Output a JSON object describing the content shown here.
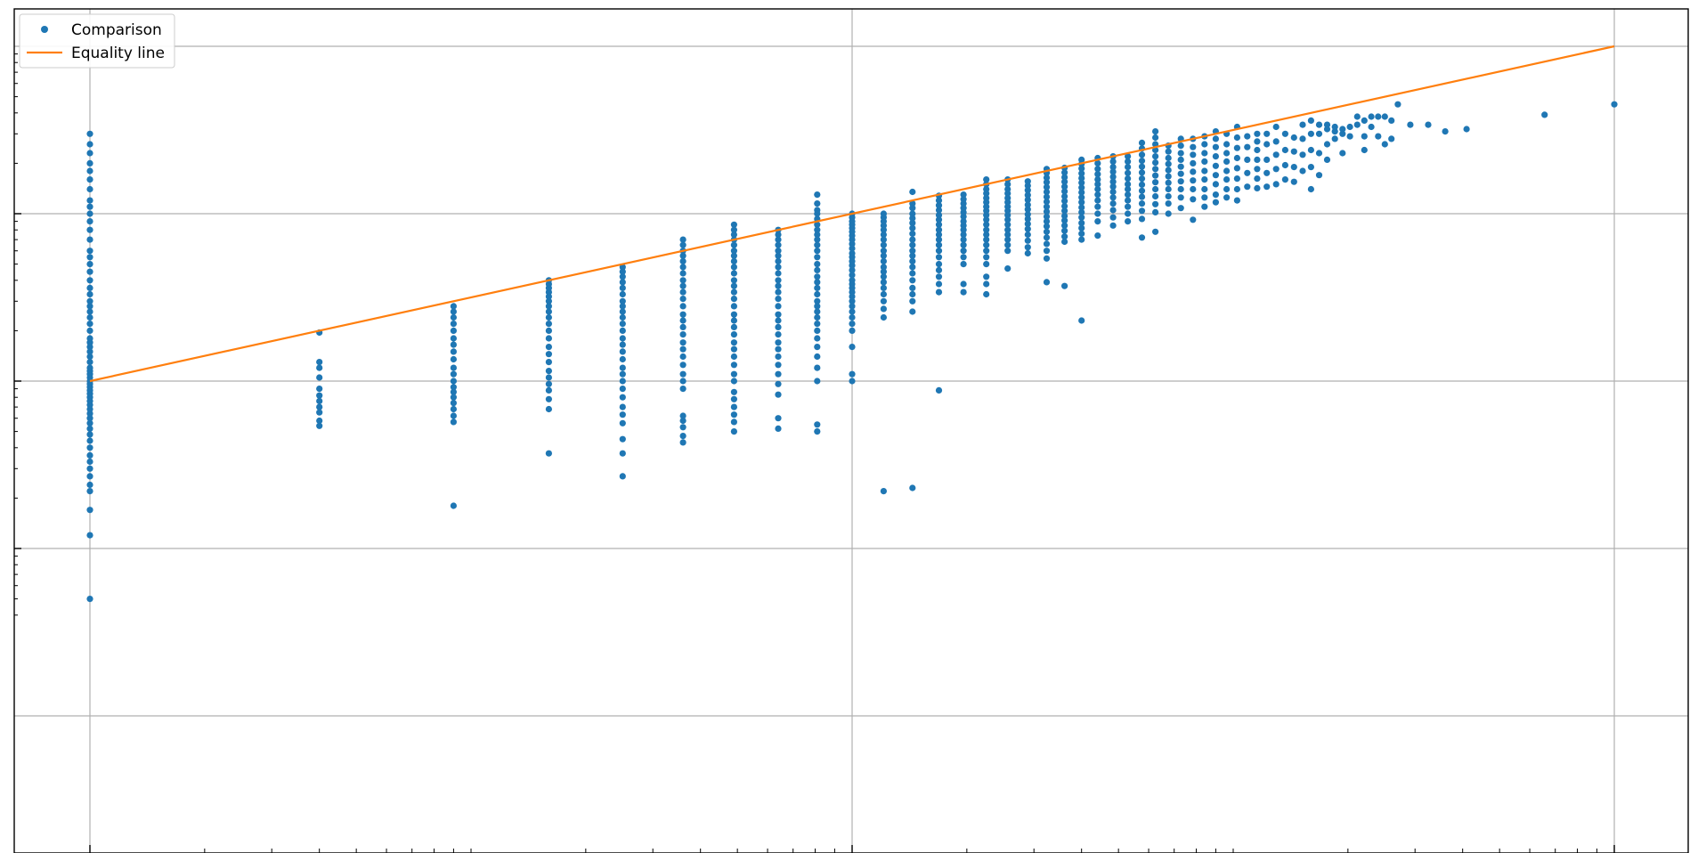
{
  "chart_data": {
    "type": "scatter",
    "title": "",
    "xlabel": "",
    "ylabel": "",
    "x_scale": "log",
    "y_scale": "log",
    "xlim": [
      0.9,
      22000
    ],
    "ylim": [
      0.037,
      90
    ],
    "grid": true,
    "legend_position": "top-left",
    "legend": [
      "Comparison",
      "Equality line"
    ],
    "colors": {
      "points": "#1f77b4",
      "line": "#ff7f0e",
      "grid": "#b0b0b0"
    },
    "series": [
      {
        "name": "Comparison",
        "kind": "points",
        "columns": [
          {
            "x": 1,
            "y_values": [
              0.05,
              0.12,
              0.17,
              0.22,
              0.24,
              0.27,
              0.3,
              0.33,
              0.36,
              0.4,
              0.44,
              0.48,
              0.52,
              0.56,
              0.6,
              0.64,
              0.68,
              0.72,
              0.76,
              0.8,
              0.84,
              0.88,
              0.92,
              0.96,
              1.0,
              1.05,
              1.1,
              1.15,
              1.2,
              1.3,
              1.4,
              1.5,
              1.6,
              1.7,
              1.8,
              2.0,
              2.2,
              2.4,
              2.6,
              2.8,
              3.0,
              3.3,
              3.6,
              4.0,
              4.5,
              5.0,
              5.5,
              6.0,
              7.0,
              8.0,
              9.0,
              10.0,
              11.0,
              12.0,
              14.0,
              16.0,
              18.0,
              20.0,
              23.0,
              26.0,
              30.0
            ]
          },
          {
            "x": 4,
            "y_values": [
              0.54,
              0.58,
              0.65,
              0.7,
              0.76,
              0.82,
              0.9,
              1.05,
              1.2,
              1.3,
              1.95
            ]
          },
          {
            "x": 9,
            "y_values": [
              0.18,
              0.57,
              0.62,
              0.68,
              0.74,
              0.8,
              0.86,
              0.92,
              1.0,
              1.1,
              1.2,
              1.35,
              1.5,
              1.65,
              1.8,
              2.0,
              2.2,
              2.4,
              2.6,
              2.8
            ]
          },
          {
            "x": 16,
            "y_values": [
              0.37,
              0.68,
              0.78,
              0.88,
              0.96,
              1.05,
              1.15,
              1.3,
              1.45,
              1.6,
              1.8,
              2.0,
              2.2,
              2.4,
              2.6,
              2.8,
              3.0,
              3.2,
              3.4,
              3.6,
              3.8,
              4.0
            ]
          },
          {
            "x": 25,
            "y_values": [
              0.27,
              0.37,
              0.45,
              0.56,
              0.63,
              0.7,
              0.8,
              0.9,
              1.0,
              1.1,
              1.2,
              1.35,
              1.5,
              1.65,
              1.8,
              2.0,
              2.2,
              2.4,
              2.6,
              2.8,
              3.0,
              3.3,
              3.6,
              3.9,
              4.2,
              4.5,
              4.8
            ]
          },
          {
            "x": 36,
            "y_values": [
              0.43,
              0.47,
              0.53,
              0.58,
              0.62,
              0.9,
              1.0,
              1.1,
              1.25,
              1.4,
              1.55,
              1.7,
              1.9,
              2.1,
              2.3,
              2.5,
              2.8,
              3.1,
              3.4,
              3.7,
              4.0,
              4.4,
              4.8,
              5.2,
              5.6,
              6.0,
              6.5,
              7.0
            ]
          },
          {
            "x": 49,
            "y_values": [
              0.5,
              0.57,
              0.63,
              0.7,
              0.78,
              0.86,
              1.0,
              1.1,
              1.25,
              1.4,
              1.55,
              1.7,
              1.9,
              2.1,
              2.3,
              2.5,
              2.8,
              3.1,
              3.4,
              3.7,
              4.0,
              4.4,
              4.8,
              5.2,
              5.6,
              6.0,
              6.5,
              7.0,
              7.5,
              8.0,
              8.6
            ]
          },
          {
            "x": 64,
            "y_values": [
              0.52,
              0.6,
              0.83,
              0.96,
              1.1,
              1.25,
              1.4,
              1.55,
              1.7,
              1.9,
              2.1,
              2.3,
              2.5,
              2.8,
              3.1,
              3.4,
              3.7,
              4.0,
              4.4,
              4.8,
              5.2,
              5.6,
              6.0,
              6.5,
              7.0,
              7.5,
              8.0
            ]
          },
          {
            "x": 81,
            "y_values": [
              0.5,
              0.55,
              1.0,
              1.2,
              1.4,
              1.6,
              1.8,
              2.0,
              2.2,
              2.4,
              2.6,
              2.8,
              3.0,
              3.3,
              3.6,
              3.9,
              4.2,
              4.6,
              5.0,
              5.5,
              6.0,
              6.5,
              7.0,
              7.5,
              8.0,
              8.6,
              9.3,
              10.0,
              10.5,
              11.5,
              13.0
            ]
          },
          {
            "x": 100,
            "y_values": [
              1.0,
              1.1,
              1.6,
              2.0,
              2.2,
              2.4,
              2.6,
              2.8,
              3.0,
              3.2,
              3.4,
              3.6,
              3.8,
              4.0,
              4.3,
              4.6,
              4.9,
              5.2,
              5.5,
              5.8,
              6.2,
              6.6,
              7.0,
              7.4,
              7.8,
              8.2,
              8.6,
              9.0,
              9.5,
              10.0
            ]
          },
          {
            "x": 121,
            "y_values": [
              0.22,
              2.4,
              2.7,
              3.0,
              3.3,
              3.6,
              3.9,
              4.2,
              4.5,
              4.8,
              5.2,
              5.6,
              6.0,
              6.5,
              7.0,
              7.5,
              8.0,
              8.5,
              9.0,
              9.5,
              10.0
            ]
          },
          {
            "x": 144,
            "y_values": [
              0.23,
              2.6,
              3.0,
              3.3,
              3.6,
              4.0,
              4.4,
              4.8,
              5.2,
              5.6,
              6.0,
              6.5,
              7.0,
              7.6,
              8.2,
              8.8,
              9.4,
              10.0,
              10.8,
              11.5,
              13.5
            ]
          },
          {
            "x": 169,
            "y_values": [
              0.88,
              3.4,
              3.8,
              4.2,
              4.6,
              5.0,
              5.5,
              6.0,
              6.5,
              7.0,
              7.5,
              8.0,
              8.6,
              9.2,
              9.8,
              10.5,
              11.2,
              12.0,
              12.8
            ]
          },
          {
            "x": 196,
            "y_values": [
              3.4,
              3.8,
              5.0,
              5.5,
              6.0,
              6.5,
              7.0,
              7.5,
              8.0,
              8.5,
              9.0,
              9.6,
              10.2,
              10.8,
              11.5,
              12.2,
              13.0
            ]
          },
          {
            "x": 225,
            "y_values": [
              3.3,
              3.8,
              4.2,
              5.0,
              5.5,
              6.0,
              6.5,
              7.0,
              7.5,
              8.0,
              8.6,
              9.2,
              9.8,
              10.4,
              11.0,
              11.7,
              12.4,
              13.2,
              14.0,
              15.0,
              16.0
            ]
          },
          {
            "x": 256,
            "y_values": [
              4.7,
              6.0,
              6.5,
              7.0,
              7.5,
              8.0,
              8.6,
              9.2,
              9.8,
              10.4,
              11.0,
              11.7,
              12.4,
              13.2,
              14.0,
              15.0,
              16.0
            ]
          },
          {
            "x": 289,
            "y_values": [
              5.8,
              6.3,
              6.9,
              7.5,
              8.1,
              8.7,
              9.3,
              9.9,
              10.6,
              11.3,
              12.1,
              12.9,
              13.8,
              14.7,
              15.6
            ]
          },
          {
            "x": 324,
            "y_values": [
              3.9,
              5.4,
              6.0,
              6.6,
              7.2,
              7.8,
              8.4,
              9.0,
              9.6,
              10.3,
              11.0,
              11.8,
              12.6,
              13.5,
              14.4,
              15.4,
              16.4,
              17.5,
              18.5
            ]
          },
          {
            "x": 361,
            "y_values": [
              3.7,
              6.8,
              7.3,
              7.9,
              8.5,
              9.1,
              9.7,
              10.4,
              11.1,
              11.9,
              12.7,
              13.6,
              14.5,
              15.5,
              16.5,
              17.6,
              18.8
            ]
          },
          {
            "x": 400,
            "y_values": [
              2.3,
              7.0,
              7.6,
              8.2,
              8.8,
              9.5,
              10.2,
              10.9,
              11.7,
              12.5,
              13.4,
              14.3,
              15.3,
              16.3,
              17.4,
              18.6,
              19.8,
              21.0
            ]
          },
          {
            "x": 441,
            "y_values": [
              7.4,
              9.0,
              10.0,
              11.0,
              12.0,
              13.0,
              14.0,
              15.0,
              16.0,
              17.2,
              18.5,
              20.0,
              21.5
            ]
          },
          {
            "x": 484,
            "y_values": [
              8.5,
              9.5,
              10.5,
              11.5,
              12.5,
              13.5,
              14.5,
              15.5,
              16.6,
              17.8,
              19.0,
              20.5,
              22.0
            ]
          },
          {
            "x": 529,
            "y_values": [
              9.0,
              10.0,
              11.0,
              12.0,
              13.0,
              14.0,
              15.0,
              16.2,
              17.5,
              19.0,
              20.5,
              22.0
            ]
          },
          {
            "x": 576,
            "y_values": [
              7.2,
              9.3,
              10.4,
              11.5,
              12.6,
              13.7,
              14.9,
              16.2,
              17.6,
              19.1,
              20.7,
              22.5,
              24.5,
              26.5
            ]
          },
          {
            "x": 625,
            "y_values": [
              7.8,
              10.2,
              11.4,
              12.7,
              14.0,
              15.4,
              16.9,
              18.5,
              20.2,
              22.0,
              24.0,
              26.0,
              28.5,
              31.0
            ]
          },
          {
            "x": 676,
            "y_values": [
              10.0,
              11.5,
              12.7,
              14.0,
              15.3,
              16.7,
              18.2,
              19.8,
              21.5,
              23.5,
              25.5
            ]
          },
          {
            "x": 729,
            "y_values": [
              10.8,
              12.5,
              14.0,
              15.6,
              17.3,
              19.1,
              21.0,
              23.0,
              25.5,
              28.0
            ]
          },
          {
            "x": 784,
            "y_values": [
              9.2,
              12.2,
              14.0,
              15.8,
              17.8,
              20.0,
              22.5,
              25.0,
              28.0
            ]
          },
          {
            "x": 841,
            "y_values": [
              11.0,
              12.5,
              14.0,
              16.0,
              18.0,
              20.5,
              23.0,
              26.0,
              29.0
            ]
          },
          {
            "x": 900,
            "y_values": [
              11.7,
              13.0,
              15.0,
              17.0,
              19.3,
              22.0,
              25.0,
              28.0,
              31.0
            ]
          },
          {
            "x": 961,
            "y_values": [
              12.5,
              14.0,
              16.0,
              18.0,
              20.5,
              23.0,
              26.0,
              30.0
            ]
          },
          {
            "x": 1024,
            "y_values": [
              12.0,
              14.0,
              16.2,
              18.7,
              21.5,
              24.7,
              28.5,
              33.0
            ]
          },
          {
            "x": 1089,
            "y_values": [
              14.5,
              17.5,
              21.0,
              25.0,
              29.0
            ]
          },
          {
            "x": 1156,
            "y_values": [
              14.2,
              16.2,
              18.5,
              21.0,
              24.0,
              27.0,
              30.0
            ]
          },
          {
            "x": 1225,
            "y_values": [
              14.5,
              17.5,
              21.0,
              26.0,
              30.0
            ]
          },
          {
            "x": 1296,
            "y_values": [
              15.0,
              18.5,
              22.5,
              27.0,
              33.0
            ]
          },
          {
            "x": 1369,
            "y_values": [
              16.0,
              19.5,
              24.0,
              30.0
            ]
          },
          {
            "x": 1444,
            "y_values": [
              15.5,
              19.0,
              23.5,
              28.5
            ]
          },
          {
            "x": 1521,
            "y_values": [
              18.0,
              22.5,
              28.0,
              34.0
            ]
          },
          {
            "x": 1600,
            "y_values": [
              14.0,
              19.0,
              24.0,
              30.0,
              36.0
            ]
          },
          {
            "x": 1681,
            "y_values": [
              17.0,
              23.0,
              30.0,
              34.0
            ]
          },
          {
            "x": 1764,
            "y_values": [
              21.0,
              26.0,
              32.0,
              34.0
            ]
          },
          {
            "x": 1849,
            "y_values": [
              28.0,
              31.0,
              33.0
            ]
          },
          {
            "x": 1936,
            "y_values": [
              23.0,
              30.0,
              32.0
            ]
          },
          {
            "x": 2025,
            "y_values": [
              29.0,
              33.0
            ]
          },
          {
            "x": 2116,
            "y_values": [
              34.0,
              38.0
            ]
          },
          {
            "x": 2209,
            "y_values": [
              24.0,
              29.0,
              36.0
            ]
          },
          {
            "x": 2304,
            "y_values": [
              33.0,
              38.0
            ]
          },
          {
            "x": 2401,
            "y_values": [
              29.0,
              38.0
            ]
          },
          {
            "x": 2500,
            "y_values": [
              26.0,
              38.0
            ]
          },
          {
            "x": 2601,
            "y_values": [
              28.0,
              36.0
            ]
          },
          {
            "x": 2704,
            "y_values": [
              45.0
            ]
          },
          {
            "x": 2916,
            "y_values": [
              34.0
            ]
          },
          {
            "x": 3249,
            "y_values": [
              34.0
            ]
          },
          {
            "x": 3600,
            "y_values": [
              31.0
            ]
          },
          {
            "x": 4096,
            "y_values": [
              32.0
            ]
          },
          {
            "x": 6561,
            "y_values": [
              39.0
            ]
          },
          {
            "x": 10000,
            "y_values": [
              45.0
            ]
          }
        ]
      },
      {
        "name": "Equality line",
        "kind": "line",
        "x": [
          1,
          10000
        ],
        "y": [
          1,
          100
        ]
      }
    ]
  }
}
